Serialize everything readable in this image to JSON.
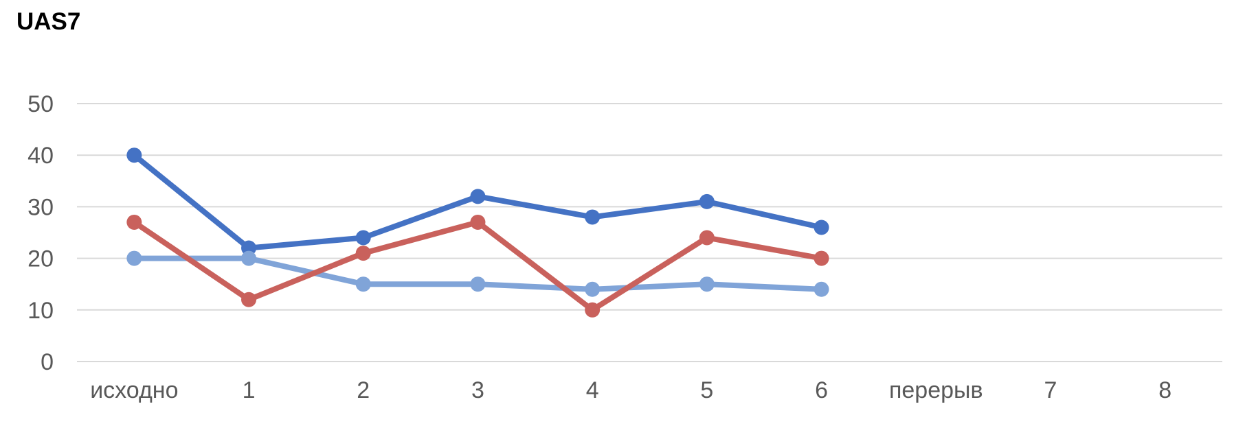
{
  "chart_data": {
    "type": "line",
    "title": "UAS7",
    "categories": [
      "исходно",
      "1",
      "2",
      "3",
      "4",
      "5",
      "6",
      "перерыв",
      "7",
      "8"
    ],
    "series": [
      {
        "id": "dark-blue",
        "color": "#4472C4",
        "values": [
          40,
          22,
          24,
          32,
          28,
          31,
          26
        ]
      },
      {
        "id": "light-blue",
        "color": "#80A4D8",
        "values": [
          20,
          20,
          15,
          15,
          14,
          15,
          14
        ]
      },
      {
        "id": "red",
        "color": "#C9615C",
        "values": [
          27,
          12,
          21,
          27,
          10,
          24,
          20
        ]
      }
    ],
    "xlabel": "",
    "ylabel": "",
    "ylim": [
      0,
      50
    ],
    "yticks": [
      0,
      10,
      20,
      30,
      40,
      50
    ],
    "grid": true,
    "legend_position": "none",
    "colors": {
      "gridline": "#D9D9D9",
      "axis_text": "#595959",
      "title_text": "#000000",
      "background": "#FFFFFF"
    }
  }
}
